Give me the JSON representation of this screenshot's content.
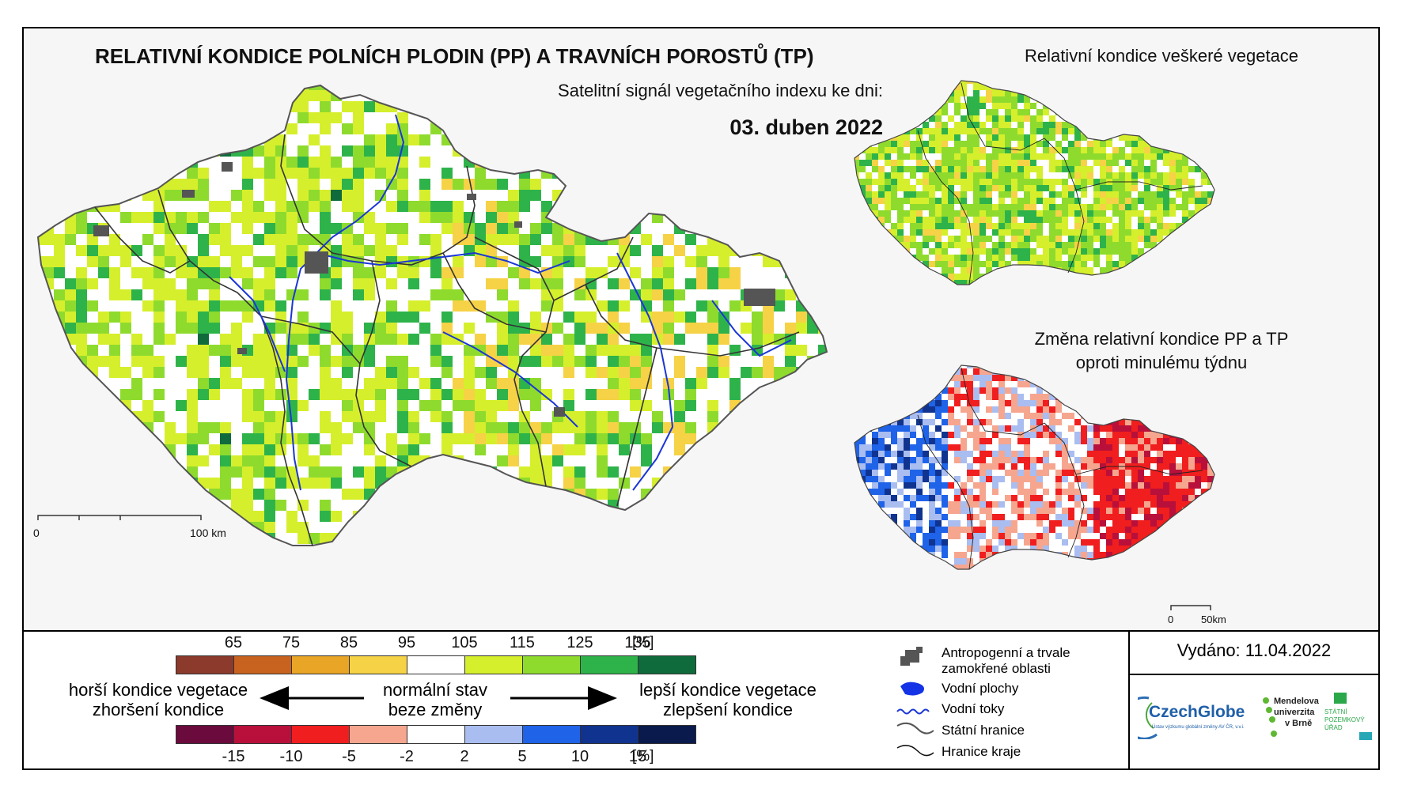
{
  "title": "RELATIVNÍ KONDICE POLNÍCH PLODIN (PP) A TRAVNÍCH POROSTŮ (TP)",
  "subtitle": "Satelitní signál vegetačního indexu ke dni:",
  "date": "03. duben 2022",
  "inset_top_title": "Relativní kondice veškeré vegetace",
  "inset_bottom_title_1": "Změna relativní kondice PP a TP",
  "inset_bottom_title_2": "oproti minulému týdnu",
  "scale_main": {
    "start": "0",
    "end": "100 km"
  },
  "scale_inset": {
    "start": "0",
    "end": "50km"
  },
  "legend_top": {
    "ticks": [
      "65",
      "75",
      "85",
      "95",
      "105",
      "115",
      "125",
      "135"
    ],
    "unit": "[%]",
    "colors": [
      "#8b3a2b",
      "#c8621f",
      "#e8a526",
      "#f6d246",
      "#ffffff",
      "#d6ef2c",
      "#8edb2e",
      "#2eb34a",
      "#0f6b3c"
    ]
  },
  "legend_bottom": {
    "ticks": [
      "-15",
      "-10",
      "-5",
      "-2",
      "2",
      "5",
      "10",
      "15"
    ],
    "unit": "[%]",
    "colors": [
      "#6b0a3d",
      "#b8103a",
      "#f01e1e",
      "#f6a68f",
      "#ffffff",
      "#a9bdf0",
      "#1f63e8",
      "#10338f",
      "#0a1a4d"
    ]
  },
  "arrow_labels": {
    "left_1": "horší kondice vegetace",
    "left_2": "zhoršení kondice",
    "center_1": "normální stav",
    "center_2": "beze změny",
    "right_1": "lepší kondice vegetace",
    "right_2": "zlepšení kondice"
  },
  "map_legend": [
    {
      "icon": "anthropogenic-area-icon",
      "text_1": "Antropogenní a trvale",
      "text_2": "zamokřené oblasti"
    },
    {
      "icon": "water-body-icon",
      "text_1": "Vodní plochy",
      "text_2": ""
    },
    {
      "icon": "water-stream-icon",
      "text_1": "Vodní toky",
      "text_2": ""
    },
    {
      "icon": "state-border-icon",
      "text_1": "Státní hranice",
      "text_2": ""
    },
    {
      "icon": "region-border-icon",
      "text_1": "Hranice kraje",
      "text_2": ""
    }
  ],
  "issued": "Vydáno: 11.04.2022",
  "logos": {
    "czechglobe": "CzechGlobe",
    "czechglobe_sub": "Ústav výzkumu globální změny AV ČR, v.v.i.",
    "mendel_1": "Mendelova",
    "mendel_2": "univerzita",
    "mendel_3": "v Brně",
    "spu_1": "STÁTNÍ",
    "spu_2": "POZEMKOVÝ",
    "spu_3": "ÚŘAD"
  }
}
